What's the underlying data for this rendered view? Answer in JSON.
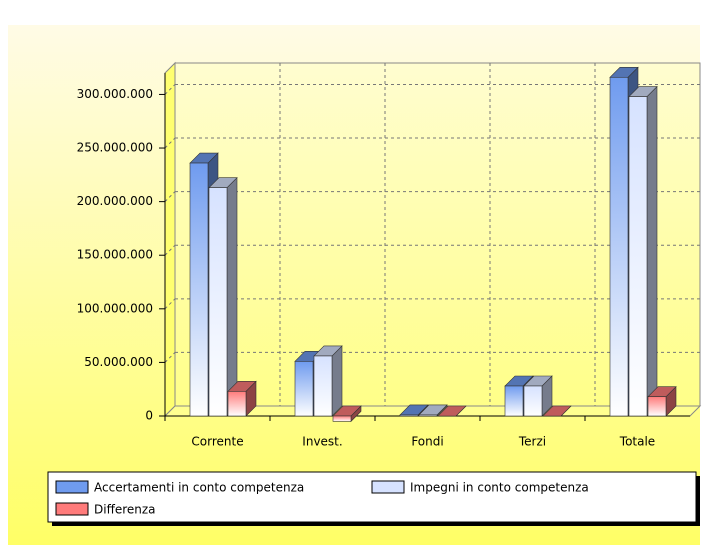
{
  "chart_data": {
    "type": "bar3d",
    "categories": [
      "Corrente",
      "Invest.",
      "Fondi",
      "Terzi",
      "Totale"
    ],
    "series": [
      {
        "name": "Accertamenti in conto competenza",
        "color": "#6f9bef",
        "values": [
          236000000,
          51000000,
          1000000,
          28000000,
          316000000
        ]
      },
      {
        "name": "Impegni in conto competenza",
        "color": "#d6e2ff",
        "values": [
          213000000,
          56000000,
          1000000,
          28000000,
          298000000
        ]
      },
      {
        "name": "Differenza",
        "color": "#ff7b7b",
        "values": [
          23000000,
          -5000000,
          0,
          0,
          18000000
        ]
      }
    ],
    "ylim": [
      0,
      320000000
    ],
    "yticks": [
      0,
      {
        "value": 50000000,
        "label": "50.000.000"
      },
      {
        "value": 100000000,
        "label": "100.000.000"
      },
      {
        "value": 150000000,
        "label": "150.000.000"
      },
      {
        "value": 200000000,
        "label": "200.000.000"
      },
      {
        "value": 250000000,
        "label": "250.000.000"
      },
      {
        "value": 300000000,
        "label": "300.000.000"
      }
    ],
    "grid": true
  }
}
